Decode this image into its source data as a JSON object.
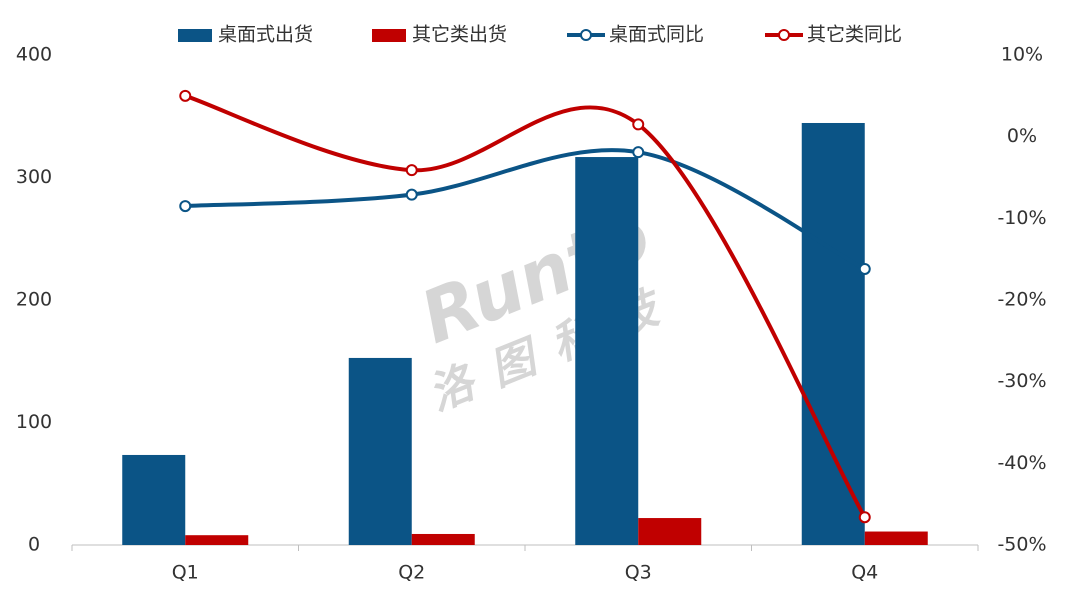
{
  "chart_data": {
    "type": "bar-line",
    "categories": [
      "Q1",
      "Q2",
      "Q3",
      "Q4"
    ],
    "series": [
      {
        "name": "桌面式出货",
        "type": "bar",
        "color": "#0b5486",
        "values": [
          73.5,
          152.7,
          316.7,
          344.5
        ]
      },
      {
        "name": "其它类出货",
        "type": "bar",
        "color": "#c00000",
        "values": [
          8,
          9,
          22,
          11
        ]
      },
      {
        "name": "桌面式同比",
        "type": "line",
        "axis": "y2",
        "color": "#0b5486",
        "values": [
          -8.5,
          -7.1,
          -1.9,
          -16.2
        ]
      },
      {
        "name": "其它类同比",
        "type": "line",
        "axis": "y2",
        "color": "#c00000",
        "values": [
          5.0,
          -4.1,
          1.5,
          -46.6
        ]
      }
    ],
    "ylim": [
      0,
      400
    ],
    "yticks": [
      0,
      100,
      200,
      300,
      400
    ],
    "y2lim": [
      -50,
      10
    ],
    "y2ticks": [
      {
        "value": -50,
        "label": "-50%"
      },
      {
        "value": -40,
        "label": "-40%"
      },
      {
        "value": -30,
        "label": "-30%"
      },
      {
        "value": -20,
        "label": "-20%"
      },
      {
        "value": -10,
        "label": "-10%"
      },
      {
        "value": 0,
        "label": "0%"
      },
      {
        "value": 10,
        "label": "10%"
      }
    ],
    "legend": "top",
    "watermark": "Runto",
    "watermark_subtext": "洛图科技"
  }
}
